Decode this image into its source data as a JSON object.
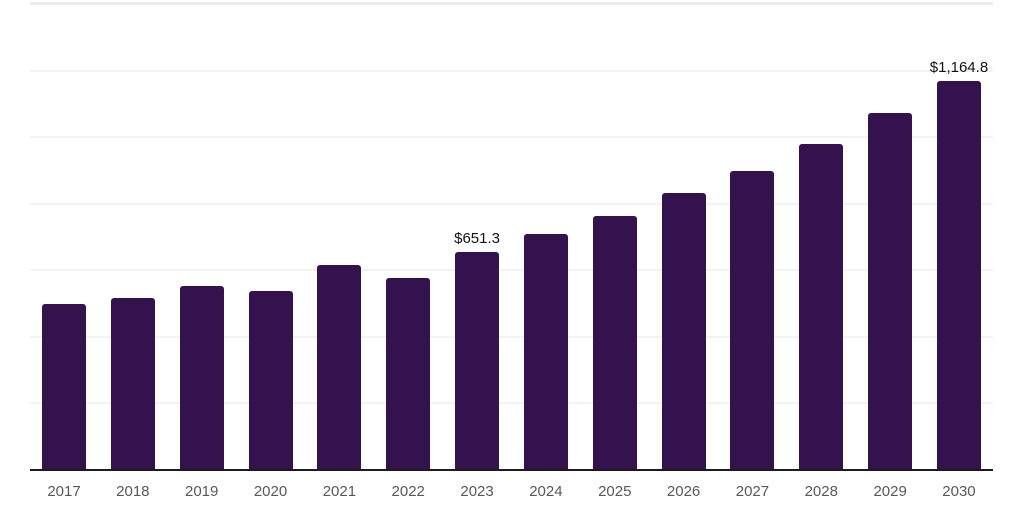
{
  "chart_data": {
    "type": "bar",
    "title": "",
    "xlabel": "",
    "ylabel": "",
    "categories": [
      "2017",
      "2018",
      "2019",
      "2020",
      "2021",
      "2022",
      "2023",
      "2024",
      "2025",
      "2026",
      "2027",
      "2028",
      "2029",
      "2030"
    ],
    "values": [
      497,
      515,
      551,
      534,
      614,
      575,
      651.3,
      705,
      760,
      829,
      896,
      977,
      1069,
      1164.8
    ],
    "value_labels": {
      "2023": "$651.3",
      "2030": "$1,164.8"
    },
    "ylim": [
      0,
      1400
    ],
    "gridline_step": 200,
    "grid": true,
    "legend": false,
    "bar_color": "#33124e",
    "axis_line_color": "#1c1c1c",
    "gridline_color": "#f2f2f2",
    "top_gridline_color": "#ececec",
    "tick_label_color": "#58585b",
    "value_label_color": "#121212"
  }
}
